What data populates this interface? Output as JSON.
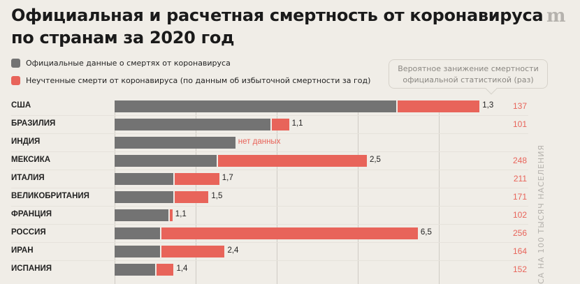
{
  "title_line1": "Официальная и расчетная смертность от коронавируса",
  "title_line2": "по странам за 2020 год",
  "logo": "m",
  "legend": [
    {
      "label": "Официальные данные о смертях от коронавируса",
      "color": "#737373"
    },
    {
      "label": "Неучтенные смерти от коронавируса (по данным об избыточной смертности за год)",
      "color": "#e8645a"
    }
  ],
  "tooltip": {
    "line1": "Вероятное занижение смертности",
    "line2": "официальной статистикой (раз)"
  },
  "side_label": "СА НА 100 ТЫСЯЧ НАСЕЛЕНИЯ",
  "chart_data": {
    "type": "bar",
    "orientation": "horizontal",
    "stacked": true,
    "grid": true,
    "categories": [
      "США",
      "БРАЗИЛИЯ",
      "ИНДИЯ",
      "МЕКСИКА",
      "ИТАЛИЯ",
      "ВЕЛИКОБРИТАНИЯ",
      "ФРАНЦИЯ",
      "РОССИЯ",
      "ИРАН",
      "ИСПАНИЯ"
    ],
    "official": [
      105,
      58,
      45,
      38,
      22,
      22,
      20,
      17,
      17,
      15
    ],
    "total": [
      136,
      65,
      null,
      94,
      39,
      35,
      21,
      113,
      41,
      22
    ],
    "ratio_labels": [
      "1,3",
      "1,1",
      "нет данных",
      "2,5",
      "1,7",
      "1,5",
      "1,1",
      "6,5",
      "2,4",
      "1,4"
    ],
    "right_values": [
      "137",
      "101",
      "",
      "248",
      "211",
      "171",
      "102",
      "256",
      "164",
      "152"
    ],
    "colors": {
      "official": "#737373",
      "unaccounted": "#e8645a"
    }
  }
}
